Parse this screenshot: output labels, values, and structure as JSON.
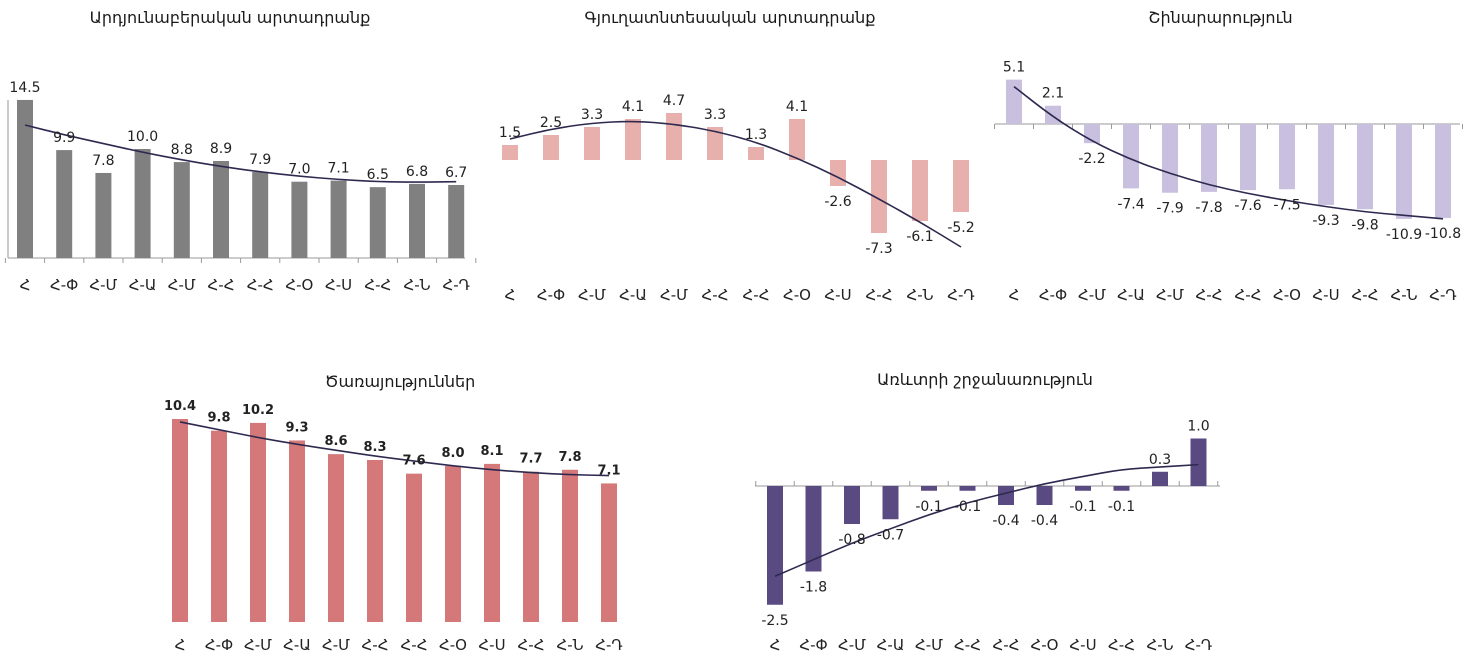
{
  "chart_data": [
    {
      "id": "industry",
      "type": "bar",
      "title": "Արդյունաբերական արտադրանք",
      "categories": [
        "Հ",
        "Հ-Փ",
        "Հ-Մ",
        "Հ-Ա",
        "Հ-Մ",
        "Հ-Հ",
        "Հ-Հ",
        "Հ-Օ",
        "Հ-Ս",
        "Հ-Հ",
        "Հ-Ն",
        "Հ-Դ"
      ],
      "values": [
        14.5,
        9.9,
        7.8,
        10.0,
        8.8,
        8.9,
        7.9,
        7.0,
        7.1,
        6.5,
        6.8,
        6.7
      ],
      "value_labels": [
        "14.5",
        "9.9",
        "7.8",
        "10.0",
        "8.8",
        "8.9",
        "7.9",
        "7.0",
        "7.1",
        "6.5",
        "6.8",
        "6.7"
      ],
      "trend": [
        12.2,
        11.3,
        10.5,
        9.7,
        9.0,
        8.4,
        7.9,
        7.5,
        7.2,
        7.0,
        6.95,
        7.0
      ],
      "bar_color": "#808080",
      "trend_color": "#2e2a4f",
      "grid": false
    },
    {
      "id": "agriculture",
      "type": "bar",
      "title": "Գյուղատնտեսական արտադրանք",
      "categories": [
        "Հ",
        "Հ-Փ",
        "Հ-Մ",
        "Հ-Ա",
        "Հ-Մ",
        "Հ-Հ",
        "Հ-Հ",
        "Հ-Օ",
        "Հ-Ս",
        "Հ-Հ",
        "Հ-Ն",
        "Հ-Դ"
      ],
      "values": [
        1.5,
        2.5,
        3.3,
        4.1,
        4.7,
        3.3,
        1.3,
        4.1,
        -2.6,
        -7.3,
        -6.1,
        -5.2
      ],
      "value_labels": [
        "1.5",
        "2.5",
        "3.3",
        "4.1",
        "4.7",
        "3.3",
        "1.3",
        "4.1",
        "-2.6",
        "-7.3",
        "-6.1",
        "-5.2"
      ],
      "trend": [
        2.1,
        3.1,
        3.7,
        3.9,
        3.6,
        2.9,
        1.8,
        0.2,
        -1.7,
        -3.9,
        -6.2,
        -8.7
      ],
      "bar_color": "#e8b0ad",
      "trend_color": "#2e2a4f",
      "grid": false
    },
    {
      "id": "construction",
      "type": "bar",
      "title": "Շինարարություն",
      "categories": [
        "Հ",
        "Հ-Փ",
        "Հ-Մ",
        "Հ-Ա",
        "Հ-Մ",
        "Հ-Հ",
        "Հ-Հ",
        "Հ-Օ",
        "Հ-Ս",
        "Հ-Հ",
        "Հ-Ն",
        "Հ-Դ"
      ],
      "values": [
        5.1,
        2.1,
        -2.2,
        -7.4,
        -7.9,
        -7.8,
        -7.6,
        -7.5,
        -9.3,
        -9.8,
        -10.9,
        -10.8
      ],
      "value_labels": [
        "5.1",
        "2.1",
        "-2.2",
        "-7.4",
        "-7.9",
        "-7.8",
        "-7.6",
        "-7.5",
        "-9.3",
        "-9.8",
        "-10.9",
        "-10.8"
      ],
      "trend": [
        4.3,
        0.8,
        -2.0,
        -4.1,
        -5.7,
        -7.0,
        -8.0,
        -8.8,
        -9.5,
        -10.1,
        -10.5,
        -10.9
      ],
      "bar_color": "#c8c0de",
      "trend_color": "#2e2a4f",
      "grid": false
    },
    {
      "id": "services",
      "type": "bar",
      "title": "Ծառայություններ",
      "categories": [
        "Հ",
        "Հ-Փ",
        "Հ-Մ",
        "Հ-Ա",
        "Հ-Մ",
        "Հ-Հ",
        "Հ-Հ",
        "Հ-Օ",
        "Հ-Ս",
        "Հ-Հ",
        "Հ-Ն",
        "Հ-Դ"
      ],
      "values": [
        10.4,
        9.8,
        10.2,
        9.3,
        8.6,
        8.3,
        7.6,
        8.0,
        8.1,
        7.7,
        7.8,
        7.1
      ],
      "value_labels": [
        "10.4",
        "9.8",
        "10.2",
        "9.3",
        "8.6",
        "8.3",
        "7.6",
        "8.0",
        "8.1",
        "7.7",
        "7.8",
        "7.1"
      ],
      "trend": [
        10.25,
        9.85,
        9.45,
        9.1,
        8.8,
        8.5,
        8.25,
        8.0,
        7.8,
        7.65,
        7.55,
        7.5
      ],
      "bar_color": "#d4787a",
      "trend_color": "#2e2a4f",
      "grid": false
    },
    {
      "id": "trade",
      "type": "bar",
      "title": "Առևտրի շրջանառություն",
      "categories": [
        "Հ",
        "Հ-Փ",
        "Հ-Մ",
        "Հ-Ա",
        "Հ-Մ",
        "Հ-Հ",
        "Հ-Հ",
        "Հ-Օ",
        "Հ-Ս",
        "Հ-Հ",
        "Հ-Ն",
        "Հ-Դ"
      ],
      "values": [
        -2.5,
        -1.8,
        -0.8,
        -0.7,
        -0.1,
        -0.1,
        -0.4,
        -0.4,
        -0.1,
        -0.1,
        0.3,
        1.0
      ],
      "value_labels": [
        "-2.5",
        "-1.8",
        "-0.8",
        "-0.7",
        "-0.1",
        "-0.1",
        "-0.4",
        "-0.4",
        "-0.1",
        "-0.1",
        "0.3",
        "1.0"
      ],
      "trend": [
        -1.9,
        -1.55,
        -1.2,
        -0.9,
        -0.6,
        -0.35,
        -0.15,
        0.05,
        0.2,
        0.35,
        0.4,
        0.45
      ],
      "bar_color": "#5a4a82",
      "trend_color": "#2e2a4f",
      "grid": false
    }
  ]
}
